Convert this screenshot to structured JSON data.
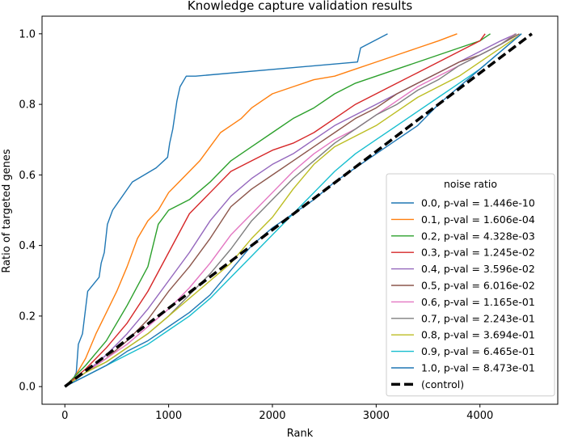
{
  "chart_data": {
    "type": "line",
    "title": "Knowledge capture validation results",
    "xlabel": "Rank",
    "ylabel": "Ratio of targeted genes",
    "xlim": [
      -220,
      4750
    ],
    "ylim": [
      -0.05,
      1.05
    ],
    "xticks": [
      0,
      1000,
      2000,
      3000,
      4000
    ],
    "yticks": [
      0.0,
      0.2,
      0.4,
      0.6,
      0.8,
      1.0
    ],
    "xtick_labels": [
      "0",
      "1000",
      "2000",
      "3000",
      "4000"
    ],
    "ytick_labels": [
      "0.0",
      "0.2",
      "0.4",
      "0.6",
      "0.8",
      "1.0"
    ],
    "grid": false,
    "legend": {
      "title": "noise ratio",
      "placement": "lower-right"
    },
    "series": [
      {
        "name": "0.0, p-val = 1.446e-10",
        "color": "#1f77b4",
        "dashed": false,
        "x": [
          0,
          80,
          110,
          130,
          170,
          220,
          330,
          350,
          380,
          410,
          460,
          650,
          880,
          990,
          1010,
          1040,
          1080,
          1110,
          1170,
          1240,
          1260,
          2820,
          2850,
          3110
        ],
        "y": [
          0,
          0.02,
          0.04,
          0.12,
          0.15,
          0.27,
          0.31,
          0.35,
          0.38,
          0.46,
          0.5,
          0.58,
          0.62,
          0.65,
          0.69,
          0.73,
          0.81,
          0.85,
          0.88,
          0.88,
          0.88,
          0.92,
          0.96,
          1.0
        ]
      },
      {
        "name": "0.1, p-val = 1.606e-04",
        "color": "#ff7f0e",
        "dashed": false,
        "x": [
          0,
          100,
          200,
          300,
          400,
          500,
          600,
          700,
          800,
          900,
          1000,
          1100,
          1200,
          1300,
          1400,
          1500,
          1600,
          1700,
          1800,
          1900,
          2000,
          2200,
          2400,
          2600,
          2800,
          3000,
          3200,
          3400,
          3600,
          3780
        ],
        "y": [
          0,
          0.03,
          0.08,
          0.15,
          0.21,
          0.27,
          0.34,
          0.42,
          0.47,
          0.5,
          0.55,
          0.58,
          0.61,
          0.64,
          0.68,
          0.72,
          0.74,
          0.76,
          0.79,
          0.81,
          0.83,
          0.85,
          0.87,
          0.88,
          0.9,
          0.92,
          0.94,
          0.96,
          0.98,
          1.0
        ]
      },
      {
        "name": "0.2, p-val = 4.328e-03",
        "color": "#2ca02c",
        "dashed": false,
        "x": [
          0,
          200,
          400,
          600,
          800,
          900,
          1000,
          1200,
          1400,
          1600,
          1800,
          2000,
          2200,
          2400,
          2600,
          2800,
          3000,
          3200,
          3400,
          3600,
          3800,
          4000,
          4100
        ],
        "y": [
          0,
          0.06,
          0.13,
          0.23,
          0.34,
          0.46,
          0.5,
          0.53,
          0.58,
          0.64,
          0.68,
          0.72,
          0.76,
          0.79,
          0.83,
          0.86,
          0.88,
          0.9,
          0.92,
          0.94,
          0.96,
          0.98,
          1.0
        ]
      },
      {
        "name": "0.3, p-val = 1.245e-02",
        "color": "#d62728",
        "dashed": false,
        "x": [
          0,
          200,
          400,
          600,
          800,
          1000,
          1200,
          1400,
          1600,
          1800,
          2000,
          2200,
          2400,
          2600,
          2800,
          3000,
          3200,
          3400,
          3600,
          3800,
          4000,
          4050
        ],
        "y": [
          0,
          0.05,
          0.11,
          0.18,
          0.27,
          0.38,
          0.49,
          0.55,
          0.61,
          0.64,
          0.67,
          0.69,
          0.72,
          0.76,
          0.8,
          0.83,
          0.86,
          0.89,
          0.92,
          0.95,
          0.98,
          1.0
        ]
      },
      {
        "name": "0.4, p-val = 3.596e-02",
        "color": "#9467bd",
        "dashed": false,
        "x": [
          0,
          200,
          400,
          600,
          800,
          1000,
          1200,
          1400,
          1600,
          1800,
          2000,
          2200,
          2400,
          2600,
          2800,
          3000,
          3200,
          3400,
          3600,
          3800,
          4000,
          4200,
          4350
        ],
        "y": [
          0,
          0.04,
          0.09,
          0.15,
          0.22,
          0.3,
          0.38,
          0.47,
          0.54,
          0.59,
          0.63,
          0.66,
          0.7,
          0.74,
          0.77,
          0.8,
          0.83,
          0.86,
          0.89,
          0.92,
          0.95,
          0.98,
          1.0
        ]
      },
      {
        "name": "0.5, p-val = 6.016e-02",
        "color": "#8c564b",
        "dashed": false,
        "x": [
          0,
          200,
          400,
          600,
          800,
          1000,
          1200,
          1400,
          1600,
          1800,
          2000,
          2200,
          2400,
          2600,
          2800,
          3000,
          3200,
          3400,
          3600,
          3800,
          4000,
          4200,
          4380
        ],
        "y": [
          0,
          0.04,
          0.08,
          0.13,
          0.19,
          0.27,
          0.34,
          0.42,
          0.51,
          0.56,
          0.6,
          0.64,
          0.68,
          0.72,
          0.76,
          0.79,
          0.83,
          0.86,
          0.89,
          0.92,
          0.94,
          0.97,
          1.0
        ]
      },
      {
        "name": "0.6, p-val = 1.165e-01",
        "color": "#e377c2",
        "dashed": false,
        "x": [
          0,
          200,
          400,
          600,
          800,
          1000,
          1200,
          1400,
          1600,
          1800,
          2000,
          2200,
          2400,
          2600,
          2800,
          3000,
          3200,
          3400,
          3600,
          3800,
          4000,
          4200,
          4340
        ],
        "y": [
          0,
          0.04,
          0.08,
          0.12,
          0.17,
          0.22,
          0.28,
          0.35,
          0.43,
          0.49,
          0.55,
          0.61,
          0.66,
          0.7,
          0.73,
          0.77,
          0.81,
          0.85,
          0.88,
          0.91,
          0.94,
          0.97,
          1.0
        ]
      },
      {
        "name": "0.7, p-val = 2.243e-01",
        "color": "#7f7f7f",
        "dashed": false,
        "x": [
          0,
          200,
          400,
          600,
          800,
          1000,
          1200,
          1400,
          1600,
          1800,
          2000,
          2200,
          2400,
          2600,
          2800,
          3000,
          3200,
          3400,
          3600,
          3800,
          4000,
          4200,
          4350
        ],
        "y": [
          0,
          0.04,
          0.07,
          0.11,
          0.15,
          0.2,
          0.26,
          0.32,
          0.39,
          0.47,
          0.53,
          0.59,
          0.64,
          0.69,
          0.73,
          0.77,
          0.8,
          0.84,
          0.87,
          0.91,
          0.94,
          0.97,
          1.0
        ]
      },
      {
        "name": "0.8, p-val = 3.694e-01",
        "color": "#bcbd22",
        "dashed": false,
        "x": [
          0,
          200,
          400,
          600,
          800,
          1000,
          1200,
          1400,
          1600,
          1800,
          2000,
          2200,
          2400,
          2600,
          2800,
          3000,
          3200,
          3400,
          3600,
          3800,
          4000,
          4200,
          4400
        ],
        "y": [
          0,
          0.04,
          0.07,
          0.11,
          0.15,
          0.2,
          0.25,
          0.3,
          0.35,
          0.42,
          0.48,
          0.56,
          0.63,
          0.68,
          0.71,
          0.74,
          0.78,
          0.82,
          0.85,
          0.88,
          0.92,
          0.96,
          1.0
        ]
      },
      {
        "name": "0.9, p-val = 6.465e-01",
        "color": "#17becf",
        "dashed": false,
        "x": [
          0,
          200,
          400,
          600,
          800,
          1000,
          1200,
          1400,
          1600,
          1800,
          2000,
          2200,
          2400,
          2600,
          2800,
          3000,
          3200,
          3400,
          3600,
          3800,
          4000,
          4200,
          4400
        ],
        "y": [
          0,
          0.03,
          0.06,
          0.09,
          0.12,
          0.16,
          0.2,
          0.25,
          0.31,
          0.37,
          0.43,
          0.49,
          0.55,
          0.61,
          0.66,
          0.7,
          0.74,
          0.78,
          0.82,
          0.86,
          0.9,
          0.95,
          1.0
        ]
      },
      {
        "name": "1.0, p-val = 8.473e-01",
        "color": "#1f77b4",
        "dashed": false,
        "x": [
          0,
          200,
          400,
          600,
          800,
          1000,
          1200,
          1400,
          1600,
          1800,
          2000,
          2200,
          2400,
          2600,
          2800,
          3000,
          3200,
          3400,
          3600,
          3800,
          4000,
          4200,
          4400
        ],
        "y": [
          0,
          0.03,
          0.06,
          0.1,
          0.13,
          0.17,
          0.21,
          0.26,
          0.33,
          0.4,
          0.45,
          0.49,
          0.53,
          0.58,
          0.62,
          0.66,
          0.7,
          0.74,
          0.8,
          0.85,
          0.9,
          0.95,
          1.0
        ]
      },
      {
        "name": "(control)",
        "color": "#000000",
        "dashed": true,
        "x": [
          0,
          4500
        ],
        "y": [
          0,
          1.0
        ]
      }
    ]
  }
}
